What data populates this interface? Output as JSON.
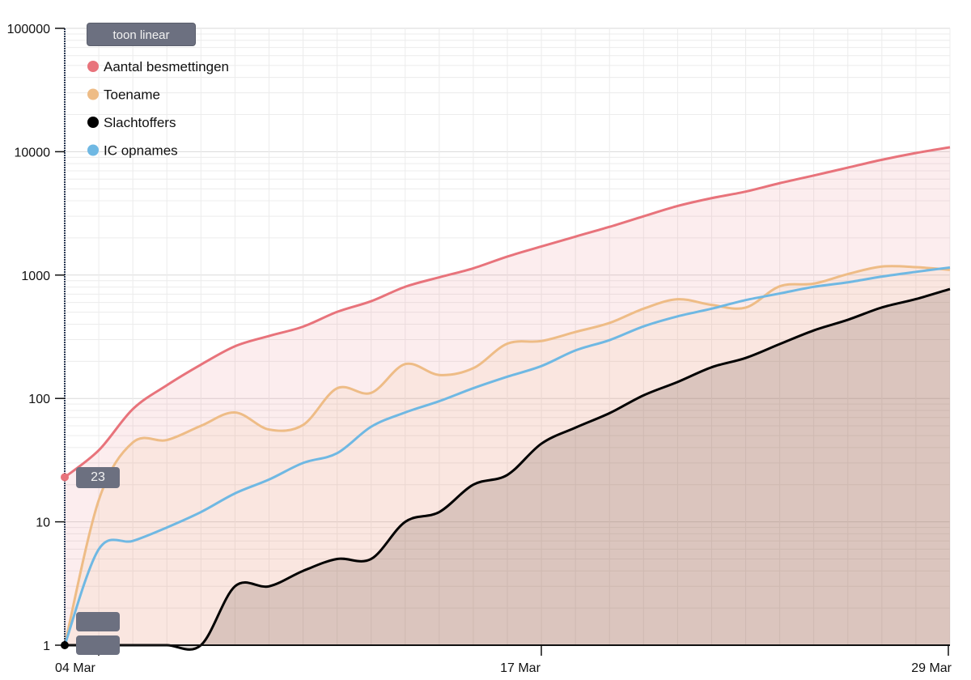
{
  "toggle_button": {
    "label": "toon linear"
  },
  "tooltips": [
    {
      "value": "23"
    },
    {
      "value": ""
    },
    {
      "value": ""
    }
  ],
  "chart_data": {
    "type": "area",
    "title": "",
    "xlabel": "",
    "ylabel": "",
    "y_scale": "log",
    "ylim": [
      1,
      100000
    ],
    "y_ticks": [
      "1",
      "10",
      "100",
      "1000",
      "10000",
      "100000"
    ],
    "x_ticks": [
      "04 Mar",
      "17 Mar",
      "29 Mar"
    ],
    "grid": true,
    "legend_position": "top-left",
    "x": [
      "03 Mar",
      "04 Mar",
      "05 Mar",
      "06 Mar",
      "07 Mar",
      "08 Mar",
      "09 Mar",
      "10 Mar",
      "11 Mar",
      "12 Mar",
      "13 Mar",
      "14 Mar",
      "15 Mar",
      "16 Mar",
      "17 Mar",
      "18 Mar",
      "19 Mar",
      "20 Mar",
      "21 Mar",
      "22 Mar",
      "23 Mar",
      "24 Mar",
      "25 Mar",
      "26 Mar",
      "27 Mar",
      "28 Mar",
      "29 Mar"
    ],
    "series": [
      {
        "name": "Aantal besmettingen",
        "color": "#e8737b",
        "values": [
          23,
          38,
          82,
          128,
          188,
          265,
          321,
          382,
          503,
          614,
          804,
          959,
          1135,
          1413,
          1705,
          2051,
          2460,
          2994,
          3631,
          4204,
          4749,
          5560,
          6412,
          7431,
          8603,
          9762,
          10866
        ]
      },
      {
        "name": "Toename",
        "color": "#eebc86",
        "values": [
          1,
          15,
          44,
          46,
          60,
          77,
          56,
          61,
          121,
          111,
          190,
          155,
          176,
          278,
          292,
          346,
          409,
          534,
          637,
          573,
          545,
          811,
          852,
          1019,
          1172,
          1159,
          1104
        ]
      },
      {
        "name": "Slachtoffers",
        "color": "#000000",
        "values": [
          1,
          1,
          1,
          1,
          1,
          3,
          3,
          4,
          5,
          5,
          10,
          12,
          20,
          24,
          43,
          58,
          76,
          106,
          136,
          179,
          213,
          276,
          356,
          434,
          546,
          639,
          771
        ]
      },
      {
        "name": "IC opnames",
        "color": "#6fb8e3",
        "values": [
          1,
          6,
          7,
          9,
          12,
          17,
          22,
          30,
          36,
          59,
          77,
          95,
          121,
          150,
          183,
          245,
          297,
          384,
          463,
          534,
          627,
          709,
          803,
          874,
          973,
          1062,
          1152
        ]
      }
    ]
  }
}
